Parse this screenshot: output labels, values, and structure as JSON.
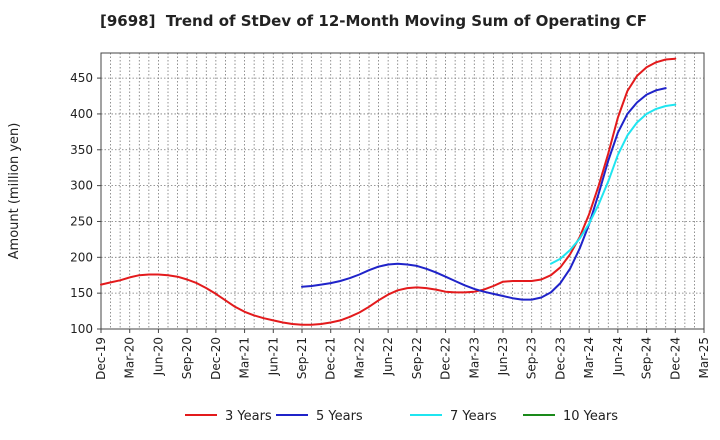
{
  "chart_data": {
    "type": "line",
    "title": "[9698]  Trend of StDev of 12-Month Moving Sum of Operating CF",
    "ylabel": "Amount (million yen)",
    "xlabel": "",
    "ylim": [
      100,
      485
    ],
    "yticks": [
      100,
      150,
      200,
      250,
      300,
      350,
      400,
      450
    ],
    "xticks": [
      "Dec-19",
      "Mar-20",
      "Jun-20",
      "Sep-20",
      "Dec-20",
      "Mar-21",
      "Jun-21",
      "Sep-21",
      "Dec-21",
      "Mar-22",
      "Jun-22",
      "Sep-22",
      "Dec-22",
      "Mar-23",
      "Jun-23",
      "Sep-23",
      "Dec-23",
      "Mar-24",
      "Jun-24",
      "Sep-24",
      "Dec-24",
      "Mar-25"
    ],
    "grid": true,
    "legend_position": "bottom",
    "series": [
      {
        "name": "3 Years",
        "color": "#e31a1c",
        "start_index": 0,
        "values": [
          162,
          165,
          168,
          172,
          175,
          176,
          176,
          175,
          173,
          169,
          164,
          157,
          149,
          140,
          131,
          124,
          119,
          115,
          112,
          109,
          107,
          106,
          106,
          107,
          109,
          112,
          117,
          123,
          131,
          140,
          148,
          154,
          157,
          158,
          157,
          155,
          152,
          151,
          151,
          152,
          155,
          160,
          166,
          167,
          167,
          167,
          169,
          175,
          186,
          204,
          228,
          260,
          300,
          345,
          395,
          432,
          453,
          465,
          472,
          476,
          477
        ]
      },
      {
        "name": "5 Years",
        "color": "#1f23c9",
        "start_index": 21,
        "values": [
          159,
          160,
          162,
          164,
          167,
          171,
          176,
          182,
          187,
          190,
          191,
          190,
          188,
          184,
          179,
          173,
          167,
          161,
          156,
          152,
          149,
          146,
          143,
          141,
          141,
          144,
          151,
          164,
          184,
          212,
          246,
          289,
          335,
          374,
          400,
          416,
          427,
          433,
          436
        ]
      },
      {
        "name": "7 Years",
        "color": "#1fe5f0",
        "start_index": 47,
        "values": [
          191,
          198,
          210,
          226,
          247,
          274,
          306,
          343,
          370,
          388,
          400,
          407,
          411,
          413
        ]
      },
      {
        "name": "10 Years",
        "color": "#1a8a1a",
        "start_index": 0,
        "values": []
      }
    ]
  }
}
